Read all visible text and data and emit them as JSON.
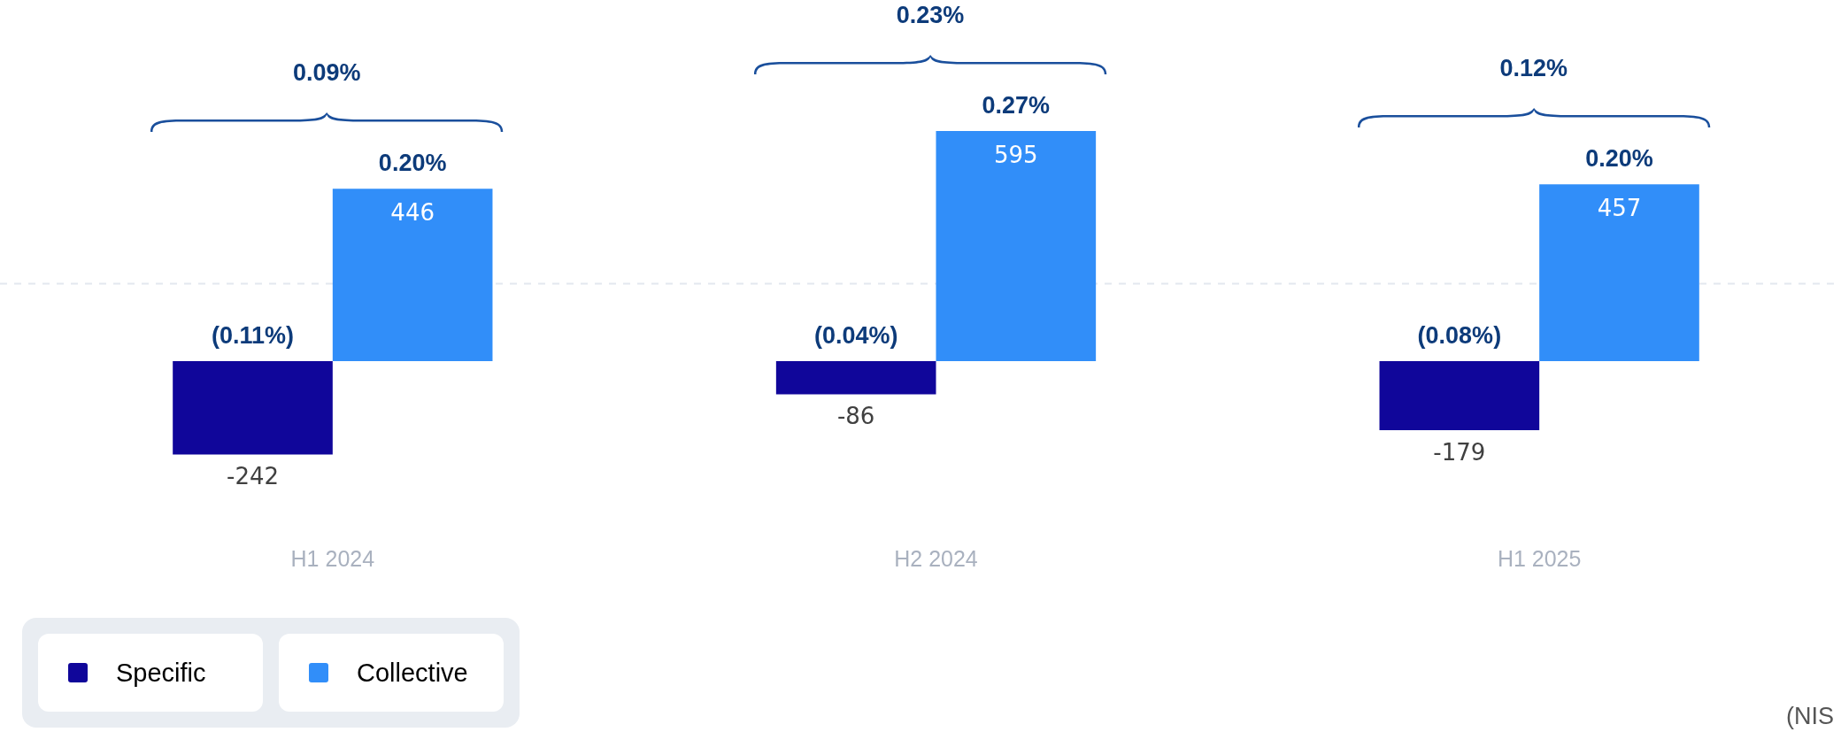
{
  "chart_data": {
    "type": "bar",
    "categories": [
      "H1 2024",
      "H2 2024",
      "H1 2025"
    ],
    "series": [
      {
        "name": "Specific",
        "color": "#10069a",
        "values": [
          -242,
          -86,
          -179
        ]
      },
      {
        "name": "Collective",
        "color": "#318ef9",
        "values": [
          446,
          595,
          457
        ]
      }
    ],
    "data_labels": true,
    "annotations": [
      "(0.11%)",
      "0.20%",
      "(0.04%)",
      "0.27%",
      "(0.08%)",
      "0.20%",
      "0.09%",
      "0.23%",
      "0.12%",
      "(NIS"
    ],
    "ref_lines": [
      {
        "axis": "y",
        "value": 200,
        "color": "#e3e8ef",
        "line_style": "dashed"
      }
    ],
    "legend": "bottom left",
    "grid": false
  }
}
